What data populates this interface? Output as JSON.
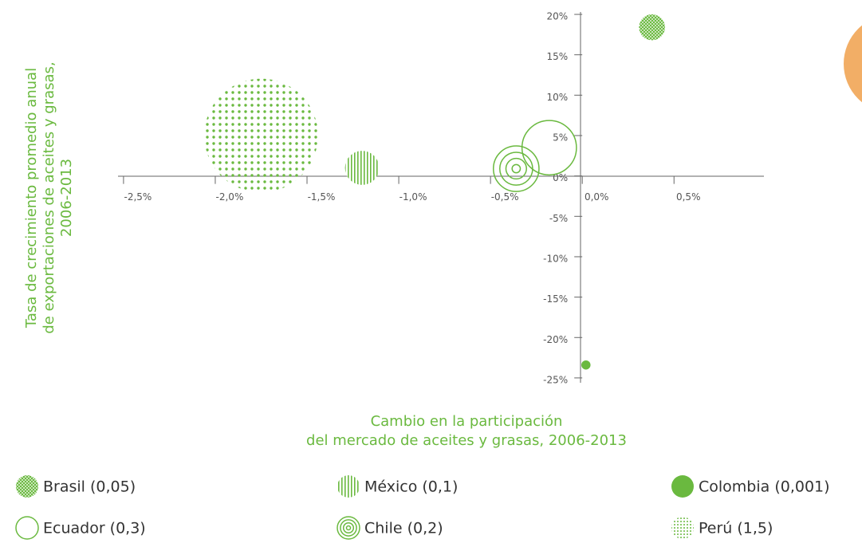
{
  "chart_data": {
    "type": "bubble",
    "y_title": [
      "Tasa de crecimiento promedio anual",
      "de exportaciones de aceites y grasas,",
      "2006-2013"
    ],
    "x_title": [
      "Cambio en la participación",
      "del mercado de aceites y grasas, 2006-2013"
    ],
    "xlim": [
      -2.53,
      0.99
    ],
    "ylim": [
      -25.6,
      20.3
    ],
    "xticks": [
      {
        "value": -2.5,
        "label": "-2,5%"
      },
      {
        "value": -2.0,
        "label": "-2,0%"
      },
      {
        "value": -1.5,
        "label": "-1,5%"
      },
      {
        "value": -1.0,
        "label": "-1,0%"
      },
      {
        "value": -0.5,
        "label": "-0,5%"
      },
      {
        "value": 0.0,
        "label": "0,0%"
      },
      {
        "value": 0.5,
        "label": "0,5%"
      }
    ],
    "yticks": [
      {
        "value": 20,
        "label": "20%"
      },
      {
        "value": 15,
        "label": "15%"
      },
      {
        "value": 10,
        "label": "10%"
      },
      {
        "value": 5,
        "label": "5%"
      },
      {
        "value": 0,
        "label": "0%"
      },
      {
        "value": -5,
        "label": "-5%"
      },
      {
        "value": -10,
        "label": "-10%"
      },
      {
        "value": -15,
        "label": "-15%"
      },
      {
        "value": -20,
        "label": "-20%"
      },
      {
        "value": -25,
        "label": "-25%"
      }
    ],
    "series": [
      {
        "name": "Brasil (0,05)",
        "color": "#6ab93f",
        "pattern": "crosshatch",
        "x": [
          0.38
        ],
        "values": [
          18.4
        ],
        "sizes": [
          0.05
        ]
      },
      {
        "name": "México (0,1)",
        "color": "#6ab93f",
        "pattern": "vertical",
        "x": [
          -1.2
        ],
        "values": [
          1.0
        ],
        "sizes": [
          0.1
        ]
      },
      {
        "name": "Colombia (0,001)",
        "color": "#6ab93f",
        "pattern": "solid",
        "x": [
          0.02
        ],
        "values": [
          -23.4
        ],
        "sizes": [
          0.001
        ]
      },
      {
        "name": "Ecuador (0,3)",
        "color": "#6ab93f",
        "pattern": "outline",
        "x": [
          -0.18
        ],
        "values": [
          3.5
        ],
        "sizes": [
          0.3
        ]
      },
      {
        "name": "Chile (0,2)",
        "color": "#6ab93f",
        "pattern": "rings",
        "x": [
          -0.36
        ],
        "values": [
          0.9
        ],
        "sizes": [
          0.2
        ]
      },
      {
        "name": "Perú (1,5)",
        "color": "#6ab93f",
        "pattern": "dots",
        "x": [
          -1.75
        ],
        "values": [
          5.0
        ],
        "sizes": [
          1.5
        ]
      }
    ]
  }
}
